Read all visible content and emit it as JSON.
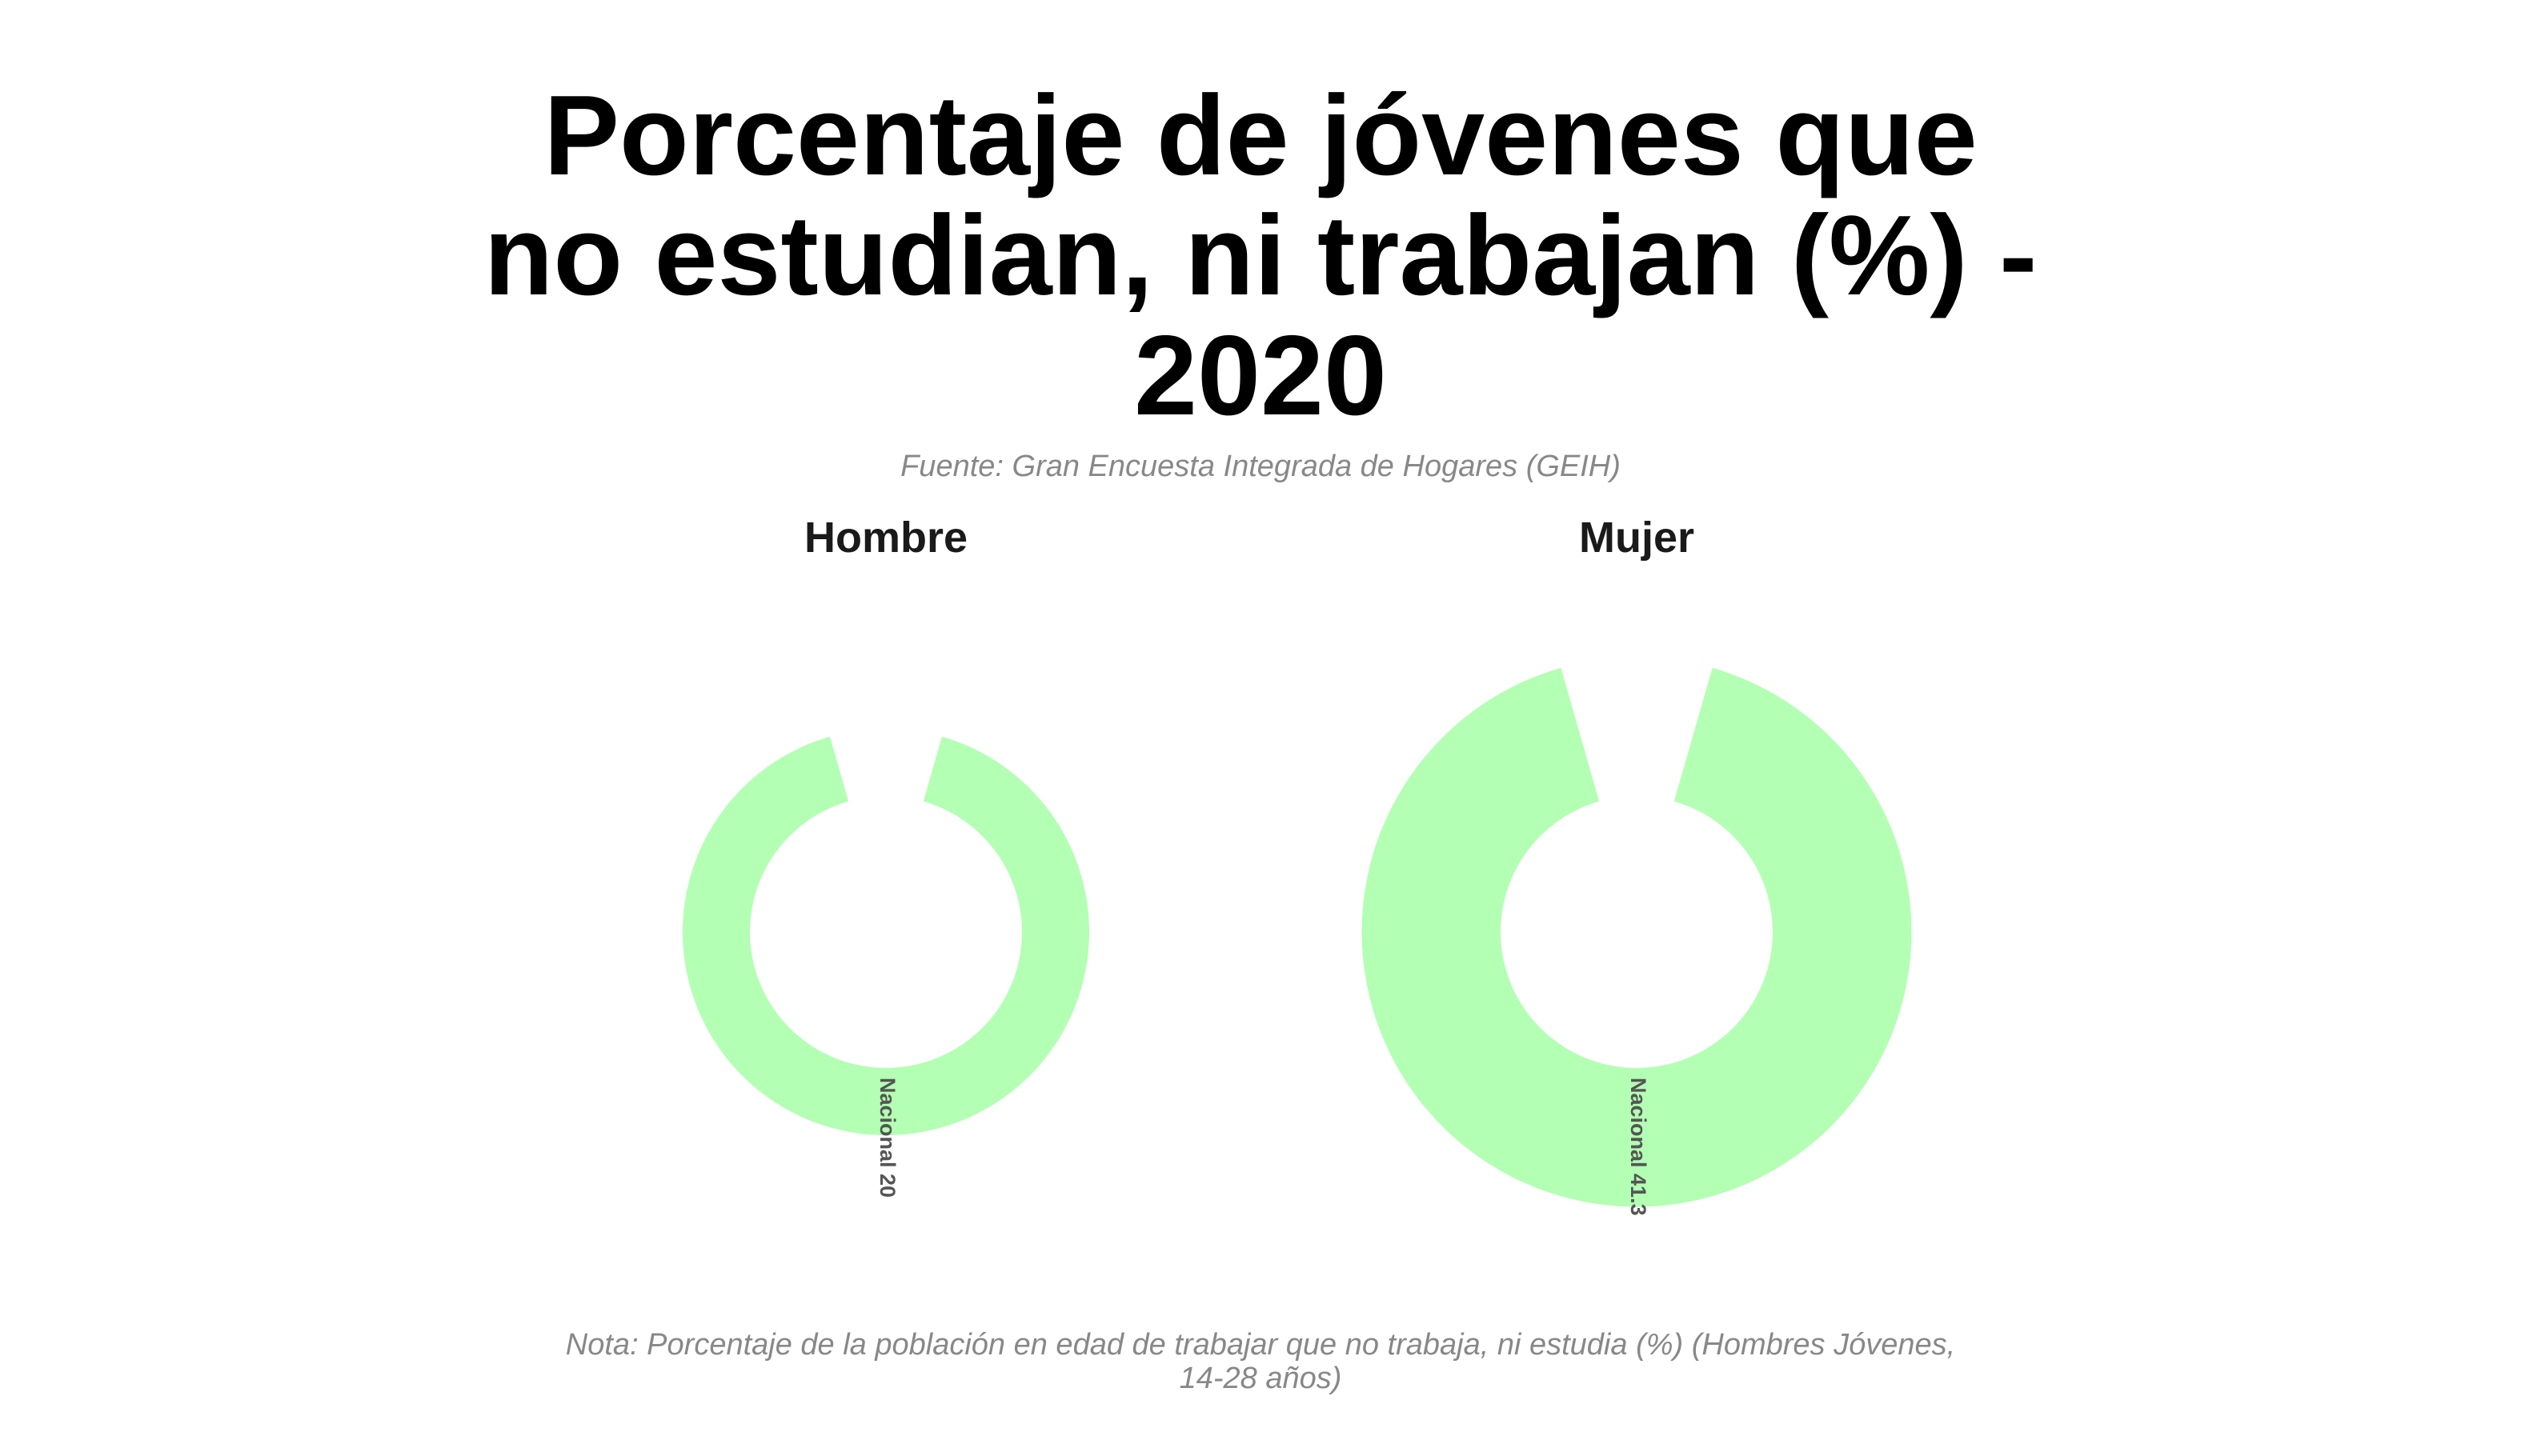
{
  "title": "Porcentaje de jóvenes que no estudian, ni trabajan (%) - 2020",
  "subtitle": "Fuente: Gran Encuesta Integrada de Hogares (GEIH)",
  "note": "Nota: Porcentaje de la población en edad de trabajar que no trabaja, ni estudia (%) (Hombres Jóvenes, 14-28 años)",
  "colors": {
    "ring": "#b3ffb3"
  },
  "chart_data": [
    {
      "type": "bar",
      "panel": "Hombre",
      "categories": [
        "Nacional"
      ],
      "values": [
        20
      ],
      "labels": [
        "Nacional 20"
      ]
    },
    {
      "type": "bar",
      "panel": "Mujer",
      "categories": [
        "Nacional"
      ],
      "values": [
        41.3
      ],
      "labels": [
        "Nacional 41.3"
      ]
    }
  ]
}
